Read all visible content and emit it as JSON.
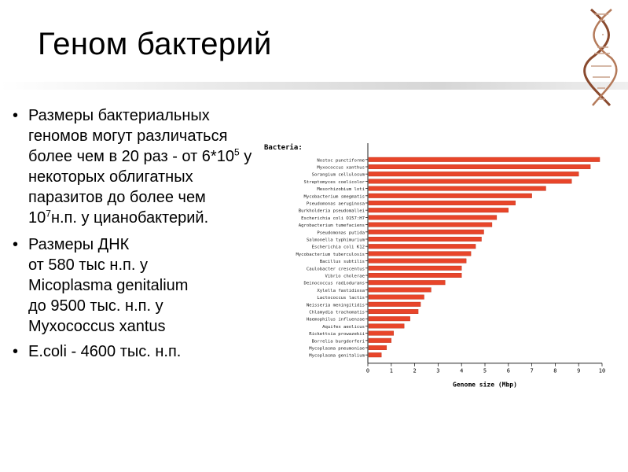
{
  "slide": {
    "title": "Геном бактерий",
    "bullets": {
      "b1": {
        "p1": "Размеры бактериальных геномов могут различаться более чем в 20 раз - от 6*10",
        "sup1": "5",
        "p2": " у некоторых облигатных паразитов до более чем 10",
        "sup2": "7",
        "p3": "н.п. у цианобактерий."
      },
      "b2": {
        "l1": "Размеры ДНК",
        "l2": "от 580 тыс н.п. у",
        "l3": "Micoplasma genitalium",
        "l4": "до 9500 тыс. н.п. у",
        "l5": "Myxococcus xantus"
      },
      "b3": "E.coli  - 4600 тыс. н.п."
    }
  },
  "colors": {
    "bar": "#e8452a",
    "bar_edge": "#b8321c"
  },
  "chart_data": {
    "type": "bar",
    "orientation": "horizontal",
    "group_label": "Bacteria:",
    "xlabel": "Genome size (Mbp)",
    "xlim": [
      0,
      10
    ],
    "xticks": [
      "0",
      "1",
      "2",
      "3",
      "4",
      "5",
      "6",
      "7",
      "8",
      "9",
      "10"
    ],
    "categories": [
      "Nostoc punctiforme",
      "Myxococcus xanthus",
      "Sorangium cellulosum",
      "Streptomyces coelicolor",
      "Mesorhizobium loti",
      "Mycobacterium smegmatis",
      "Pseudomonas aeruginosa",
      "Burkholderia pseudomallei",
      "Escherichia coli O157:H7",
      "Agrobacterium tumefaciens",
      "Pseudomonas putida",
      "Salmonella typhimurium",
      "Escherichia coli K12",
      "Mycobacterium tuberculosis",
      "Bacillus subtilis",
      "Caulobacter crescentus",
      "Vibrio cholerae",
      "Deinococcus radiodurans",
      "Xylella fastidiosa",
      "Lactococcus lactis",
      "Neisseria meningitidis",
      "Chlamydia trachomatis",
      "Haemophilus influenzae",
      "Aquifex aeolicus",
      "Rickettsia prowazekii",
      "Borrelia burgdorferi",
      "Mycoplasma pneumoniae",
      "Mycoplasma genitalium"
    ],
    "values": [
      9.9,
      9.5,
      9.0,
      8.7,
      7.6,
      7.0,
      6.3,
      6.0,
      5.5,
      5.3,
      4.95,
      4.85,
      4.6,
      4.4,
      4.2,
      4.0,
      4.0,
      3.3,
      2.7,
      2.4,
      2.25,
      2.15,
      1.8,
      1.55,
      1.1,
      1.0,
      0.8,
      0.58
    ],
    "grid": false,
    "legend": "none"
  }
}
